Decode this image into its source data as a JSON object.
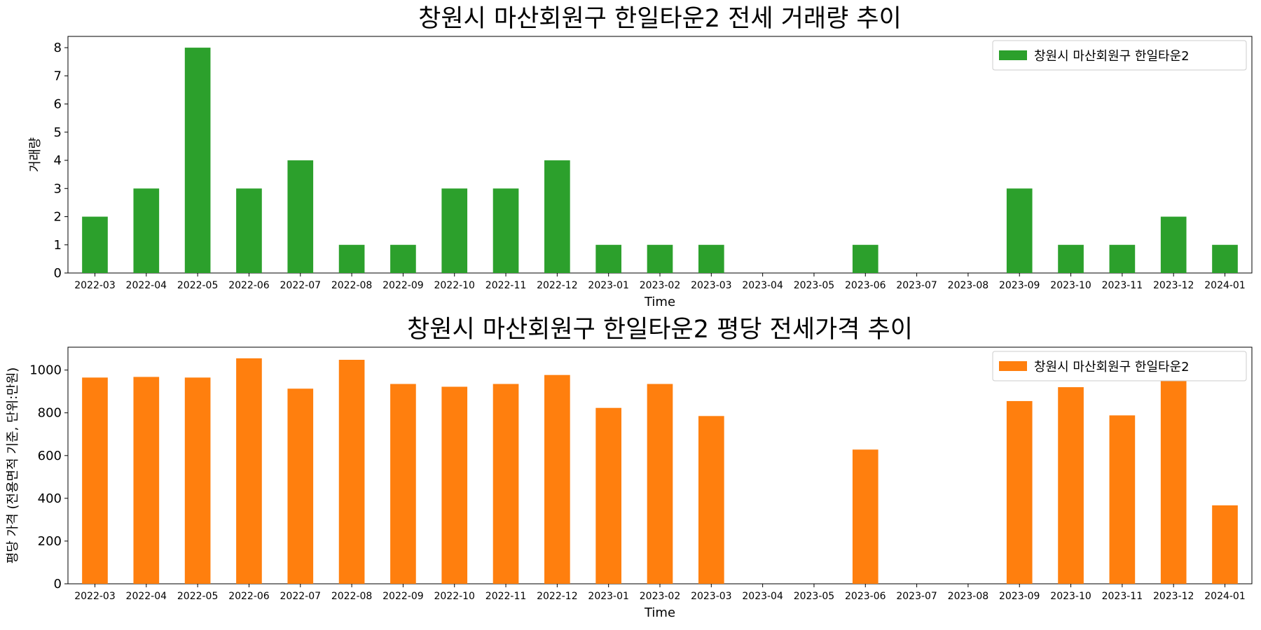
{
  "chart_data": [
    {
      "type": "bar",
      "title": "창원시 마산회원구 한일타운2 전세 거래량 추이",
      "xlabel": "Time",
      "ylabel": "거래량",
      "categories": [
        "2022-03",
        "2022-04",
        "2022-05",
        "2022-06",
        "2022-07",
        "2022-08",
        "2022-09",
        "2022-10",
        "2022-11",
        "2022-12",
        "2023-01",
        "2023-02",
        "2023-03",
        "2023-04",
        "2023-05",
        "2023-06",
        "2023-07",
        "2023-08",
        "2023-09",
        "2023-10",
        "2023-11",
        "2023-12",
        "2024-01"
      ],
      "series": [
        {
          "name": "창원시 마산회원구 한일타운2",
          "values": [
            2,
            3,
            8,
            3,
            4,
            1,
            1,
            3,
            3,
            4,
            1,
            1,
            1,
            0,
            0,
            1,
            0,
            0,
            3,
            1,
            1,
            2,
            1
          ]
        }
      ],
      "ylim": [
        0,
        8.4
      ],
      "yticks": [
        0,
        1,
        2,
        3,
        4,
        5,
        6,
        7,
        8
      ],
      "color": "#2ca02c",
      "legend_position": "upper right",
      "grid": false
    },
    {
      "type": "bar",
      "title": "창원시 마산회원구 한일타운2 평당 전세가격 추이",
      "xlabel": "Time",
      "ylabel": "평당 가격 (전용면적 기준, 단위:만원)",
      "categories": [
        "2022-03",
        "2022-04",
        "2022-05",
        "2022-06",
        "2022-07",
        "2022-08",
        "2022-09",
        "2022-10",
        "2022-11",
        "2022-12",
        "2023-01",
        "2023-02",
        "2023-03",
        "2023-04",
        "2023-05",
        "2023-06",
        "2023-07",
        "2023-08",
        "2023-09",
        "2023-10",
        "2023-11",
        "2023-12",
        "2024-01"
      ],
      "series": [
        {
          "name": "창원시 마산회원구 한일타운2",
          "values": [
            965,
            968,
            965,
            1055,
            913,
            1048,
            935,
            922,
            935,
            977,
            823,
            935,
            785,
            0,
            0,
            628,
            0,
            0,
            855,
            920,
            788,
            968,
            367
          ]
        }
      ],
      "ylim": [
        0,
        1107
      ],
      "yticks": [
        0,
        200,
        400,
        600,
        800,
        1000
      ],
      "color": "#ff7f0e",
      "legend_position": "upper right",
      "grid": false
    }
  ]
}
